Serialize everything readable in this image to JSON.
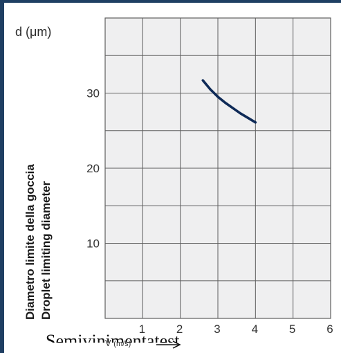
{
  "chart_data": {
    "type": "line",
    "ylabel_unit": "d (μm)",
    "ylabel_it": "Diametro limite della goccia",
    "ylabel_en": "Droplet limiting diameter",
    "xlabel_prefix": "V",
    "xlabel_unit": "(m/s)",
    "x_ticks": [
      "1",
      "2",
      "3",
      "4",
      "5",
      "6"
    ],
    "y_ticks": [
      "10",
      "20",
      "30"
    ],
    "xlim": [
      0,
      6
    ],
    "ylim": [
      0,
      40
    ],
    "grid": true,
    "series": [
      {
        "x": [
          2.6,
          2.8,
          3.0,
          3.2,
          3.4,
          3.6,
          3.8,
          4.0
        ],
        "y": [
          31.7,
          30.5,
          29.5,
          28.7,
          28.0,
          27.3,
          26.7,
          26.1
        ]
      }
    ]
  },
  "cut_text": "Semivinimentatest",
  "colors": {
    "frame": "#1f3f63",
    "plot_bg": "#efeff0",
    "grid": "#5e5e5e",
    "curve": "#0e2a57"
  }
}
